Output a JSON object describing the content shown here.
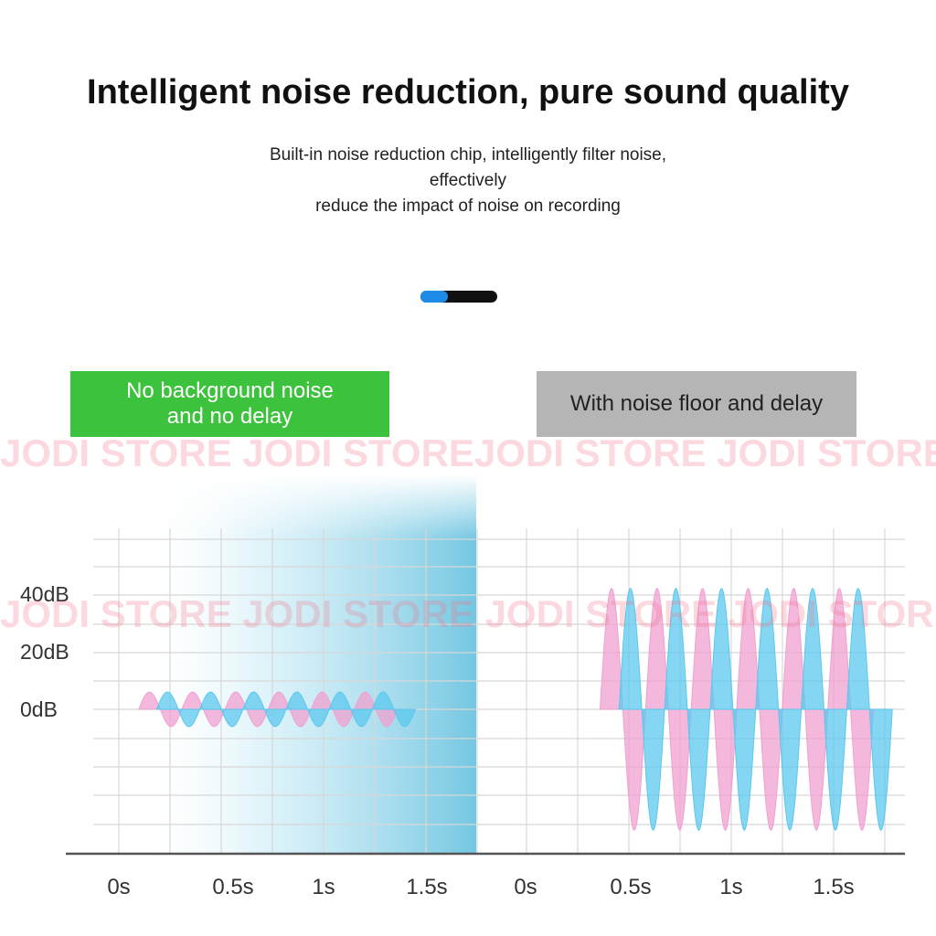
{
  "header": {
    "title": "Intelligent noise reduction, pure sound quality",
    "subtitle_line1": "Built-in noise reduction chip, intelligently filter noise, effectively",
    "subtitle_line2": "reduce the impact of noise on recording"
  },
  "pager": {
    "total": 2,
    "active_index": 0
  },
  "badges": {
    "left_line1": "No background noise",
    "left_line2": "and no delay",
    "right": "With noise floor and delay"
  },
  "colors": {
    "pink": "#f0a0d0",
    "blue": "#5cc8ee",
    "green_badge": "#3cc23c",
    "gray_badge": "#b5b5b5",
    "highlight": "#6cc4e0"
  },
  "watermark": {
    "row1": "JODI STORE JODI STOREJODI STORE JODI STORE",
    "row2": "JODI STORE JODI STORE JODI STORE JODI STORE"
  },
  "chart_data": [
    {
      "type": "line",
      "panel": "left",
      "y_tick_labels": [
        "40dB",
        "20dB",
        "0dB"
      ],
      "y_ticks": [
        40,
        20,
        0
      ],
      "x_tick_labels": [
        "0s",
        "0.5s",
        "1s",
        "1.5s"
      ],
      "x_ticks": [
        0,
        0.5,
        1,
        1.5
      ],
      "xlim": [
        0,
        1.8
      ],
      "ylim": [
        -50,
        50
      ],
      "grid": true,
      "series": [
        {
          "color": "pink",
          "amplitude_db": 6,
          "cycles": 6,
          "start_s": 0.1,
          "end_s": 1.4
        },
        {
          "color": "blue",
          "amplitude_db": 6,
          "cycles": 6,
          "start_s": 0.19,
          "end_s": 1.49
        }
      ]
    },
    {
      "type": "line",
      "panel": "right",
      "x_tick_labels": [
        "0s",
        "0.5s",
        "1s",
        "1.5s"
      ],
      "x_ticks": [
        0,
        0.5,
        1,
        1.5
      ],
      "xlim": [
        0,
        1.8
      ],
      "ylim": [
        -50,
        50
      ],
      "grid": true,
      "series": [
        {
          "color": "pink",
          "amplitude_db": 42,
          "cycles": 6,
          "start_s": 0.35,
          "end_s": 1.65
        },
        {
          "color": "blue",
          "amplitude_db": 42,
          "cycles": 6,
          "start_s": 0.44,
          "end_s": 1.74
        }
      ]
    }
  ]
}
